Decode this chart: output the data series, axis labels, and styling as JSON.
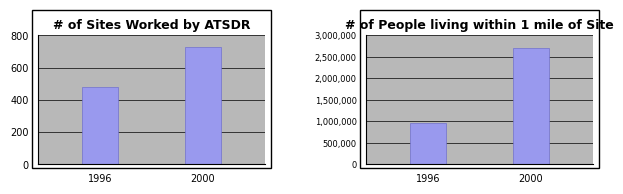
{
  "chart1": {
    "title": "# of Sites Worked by ATSDR",
    "categories": [
      "1996",
      "2000"
    ],
    "values": [
      480,
      730
    ],
    "ylim": [
      0,
      800
    ],
    "yticks": [
      0,
      200,
      400,
      600,
      800
    ],
    "bar_color": "#9999ee",
    "bg_color": "#b8b8b8"
  },
  "chart2": {
    "title": "# of People living within 1 mile of Site",
    "categories": [
      "1996",
      "2000"
    ],
    "values": [
      950000,
      2700000
    ],
    "ylim": [
      0,
      3000000
    ],
    "yticks": [
      0,
      500000,
      1000000,
      1500000,
      2000000,
      2500000,
      3000000
    ],
    "bar_color": "#9999ee",
    "bg_color": "#b8b8b8"
  },
  "outer_bg": "#ffffff",
  "panel_bg": "#ffffff",
  "border_color": "#000000",
  "title_fontsize": 9,
  "tick_fontsize": 7,
  "tick_fontsize2": 6
}
